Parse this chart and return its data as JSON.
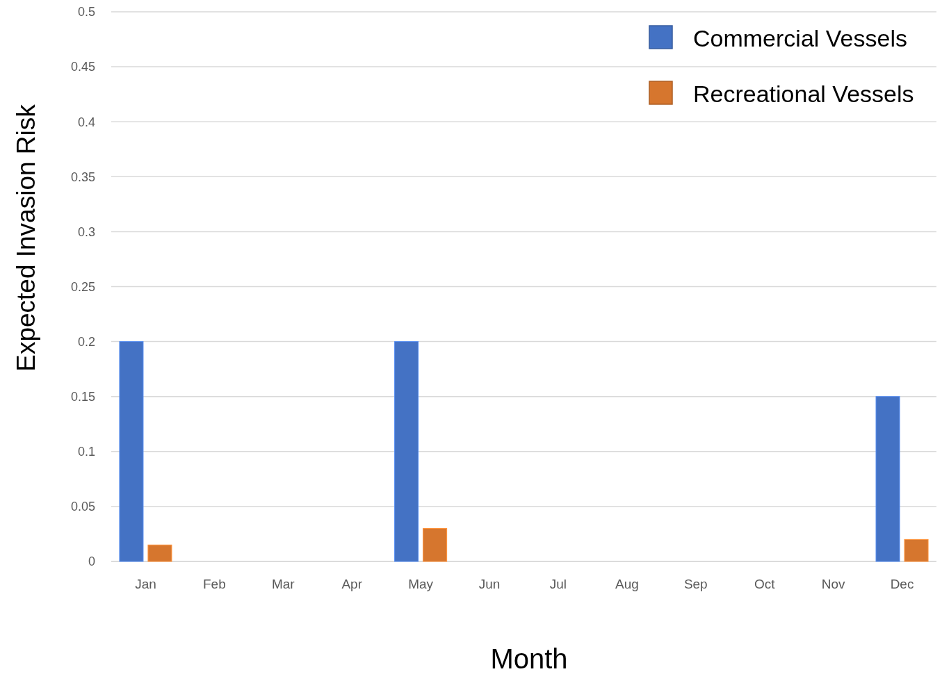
{
  "chart_data": {
    "type": "bar",
    "xlabel": "Month",
    "ylabel": "Expected Invasion Risk",
    "categories": [
      "Jan",
      "Feb",
      "Mar",
      "Apr",
      "May",
      "Jun",
      "Jul",
      "Aug",
      "Sep",
      "Oct",
      "Nov",
      "Dec"
    ],
    "series": [
      {
        "name": "Commercial Vessels",
        "color": "#4472c4",
        "values": [
          0.2,
          null,
          null,
          null,
          0.2,
          null,
          null,
          null,
          null,
          null,
          null,
          0.15
        ]
      },
      {
        "name": "Recreational Vessels",
        "color": "#d6762e",
        "values": [
          0.015,
          0,
          0,
          0,
          0.03,
          0,
          0,
          0,
          0,
          0,
          0,
          0.02
        ]
      }
    ],
    "ylim": [
      0,
      0.5
    ],
    "yticks": [
      0,
      0.05,
      0.1,
      0.15,
      0.2,
      0.25,
      0.3,
      0.35,
      0.4,
      0.45,
      0.5
    ],
    "grid": "y",
    "legend": "top right"
  }
}
